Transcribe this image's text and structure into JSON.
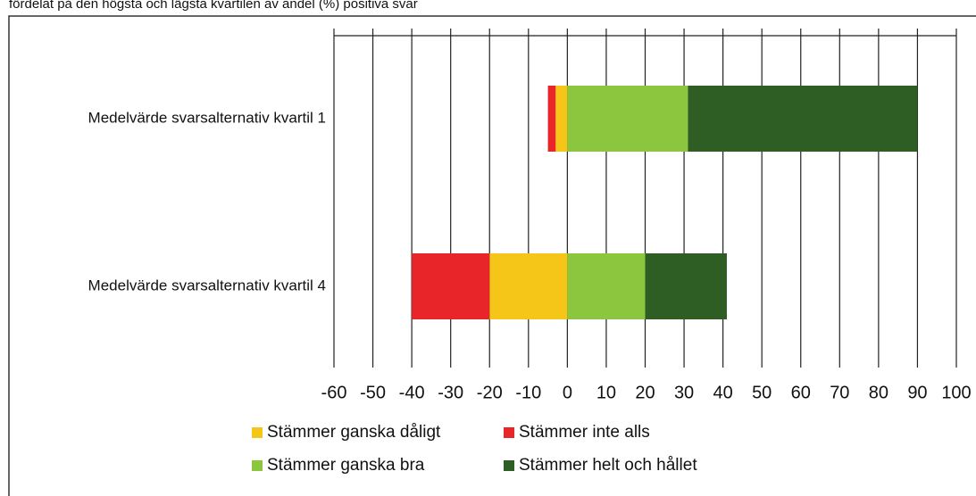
{
  "chart_data": {
    "type": "bar",
    "orientation": "horizontal",
    "stacked": "diverging",
    "title": "fördelat på den högsta och lägsta kvartilen av andel (%) positiva svar",
    "categories": [
      "Medelvärde svarsalternativ kvartil 1",
      "Medelvärde svarsalternativ kvartil 4"
    ],
    "series": [
      {
        "name": "Stämmer ganska dåligt",
        "color": "#f5c518",
        "values": [
          -3,
          -20
        ]
      },
      {
        "name": "Stämmer inte alls",
        "color": "#e8262a",
        "values": [
          -2,
          -20
        ]
      },
      {
        "name": "Stämmer ganska bra",
        "color": "#8cc63f",
        "values": [
          31,
          20
        ]
      },
      {
        "name": "Stämmer helt och hållet",
        "color": "#2e5e23",
        "values": [
          59,
          21
        ]
      }
    ],
    "xlim": [
      -60,
      100
    ],
    "xticks": [
      -60,
      -50,
      -40,
      -30,
      -20,
      -10,
      0,
      10,
      20,
      30,
      40,
      50,
      60,
      70,
      80,
      90,
      100
    ],
    "grid": true,
    "legend": "bottom"
  }
}
